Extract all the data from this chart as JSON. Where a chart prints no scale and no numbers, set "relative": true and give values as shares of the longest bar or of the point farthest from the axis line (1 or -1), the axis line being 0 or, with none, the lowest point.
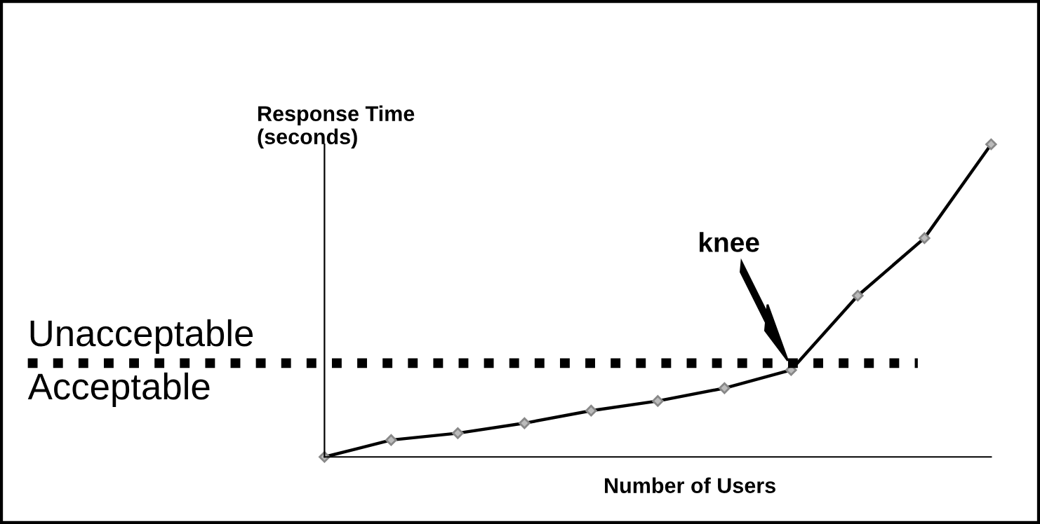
{
  "chart_data": {
    "type": "line",
    "relative": true,
    "ylabel": "Response Time\n(seconds)",
    "xlabel": "Number of Users",
    "categories": [
      null,
      null,
      null,
      null,
      null,
      null,
      null,
      null,
      null,
      null,
      null
    ],
    "series": [
      {
        "color": "#000000",
        "values": [
          0,
          0.054,
          0.076,
          0.108,
          0.148,
          0.179,
          0.22,
          0.278,
          0.516,
          0.7,
          1
        ]
      }
    ],
    "marker": "diamond",
    "grid": false,
    "ref_lines": [
      {
        "axis": "y",
        "value": 0.3,
        "color": "#000000",
        "line_style": "dotted"
      }
    ],
    "annotations": [
      "Unacceptable",
      "Acceptable",
      "knee"
    ]
  }
}
